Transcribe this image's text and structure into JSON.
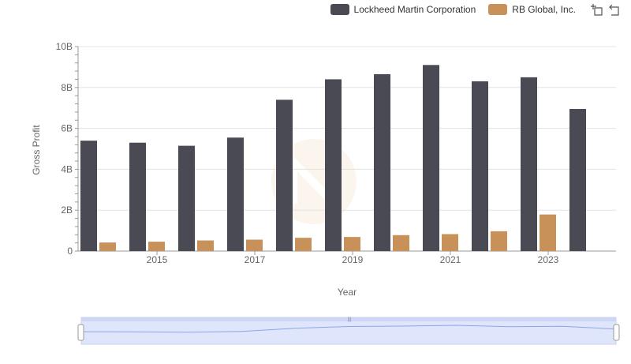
{
  "legend": {
    "series0": "Lockheed Martin Corporation",
    "series1": "RB Global, Inc."
  },
  "chart_data": {
    "type": "bar",
    "x": [
      2014,
      2015,
      2016,
      2017,
      2018,
      2019,
      2020,
      2021,
      2022,
      2023,
      2024
    ],
    "xticks": [
      "2015",
      "2017",
      "2019",
      "2021",
      "2023"
    ],
    "xlabel": "Year",
    "ylabel": "Gross Profit",
    "ylim": [
      0,
      10000000000
    ],
    "yticks": [
      "0",
      "2B",
      "4B",
      "6B",
      "8B",
      "10B"
    ],
    "grid": true,
    "legend_position": "top-right",
    "series": [
      {
        "name": "Lockheed Martin Corporation",
        "color": "#4a4a55",
        "values": [
          5400000000,
          5300000000,
          5150000000,
          5550000000,
          7400000000,
          8400000000,
          8650000000,
          9100000000,
          8300000000,
          8500000000,
          6950000000
        ]
      },
      {
        "name": "RB Global, Inc.",
        "color": "#c8915a",
        "values": [
          420000000,
          460000000,
          520000000,
          560000000,
          650000000,
          690000000,
          780000000,
          830000000,
          970000000,
          1790000000,
          null
        ]
      }
    ]
  }
}
